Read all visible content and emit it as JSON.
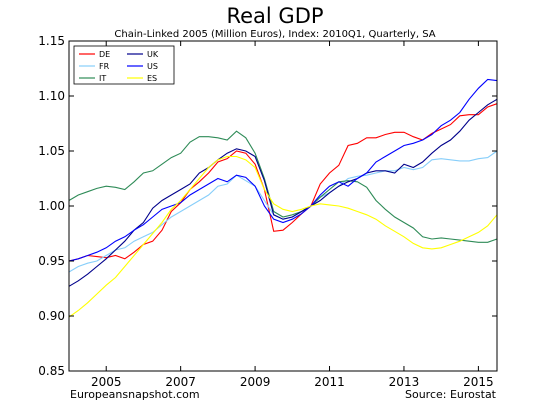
{
  "chart_data": {
    "type": "line",
    "title": "Real GDP",
    "subtitle": "Chain-Linked 2005 (Million Euros), Index: 2010Q1, Quarterly, SA",
    "source_left": "Europeansnapshot.com",
    "source_right": "Source: Eurostat",
    "xlim": [
      2004.0,
      2015.5
    ],
    "ylim": [
      0.85,
      1.15
    ],
    "x_ticks": [
      2005,
      2007,
      2009,
      2011,
      2013,
      2015
    ],
    "x_tick_labels": [
      "2005",
      "2007",
      "2009",
      "2011",
      "2013",
      "2015"
    ],
    "y_ticks": [
      0.85,
      0.9,
      0.95,
      1.0,
      1.05,
      1.1,
      1.15
    ],
    "y_tick_labels": [
      "0.85",
      "0.90",
      "0.95",
      "1.00",
      "1.05",
      "1.10",
      "1.15"
    ],
    "legend_position": "top-left",
    "legend_columns": 2,
    "grid": false,
    "x_start": 2004.0,
    "x_step": 0.25,
    "series": [
      {
        "name": "DE",
        "color": "#ff0000",
        "values": [
          0.95,
          0.952,
          0.955,
          0.954,
          0.953,
          0.955,
          0.952,
          0.958,
          0.965,
          0.968,
          0.978,
          0.995,
          1.003,
          1.015,
          1.022,
          1.03,
          1.04,
          1.043,
          1.05,
          1.048,
          1.038,
          1.015,
          0.977,
          0.978,
          0.985,
          0.993,
          1.0,
          1.02,
          1.03,
          1.037,
          1.055,
          1.057,
          1.062,
          1.062,
          1.065,
          1.067,
          1.067,
          1.063,
          1.06,
          1.066,
          1.07,
          1.074,
          1.082,
          1.083,
          1.083,
          1.09,
          1.093
        ]
      },
      {
        "name": "FR",
        "color": "#87cefa",
        "values": [
          0.94,
          0.945,
          0.948,
          0.95,
          0.955,
          0.96,
          0.962,
          0.968,
          0.972,
          0.976,
          0.983,
          0.99,
          0.995,
          1.0,
          1.005,
          1.01,
          1.018,
          1.02,
          1.028,
          1.023,
          1.018,
          1.005,
          0.992,
          0.988,
          0.99,
          0.995,
          1.0,
          1.008,
          1.012,
          1.018,
          1.025,
          1.027,
          1.028,
          1.03,
          1.032,
          1.032,
          1.035,
          1.033,
          1.035,
          1.042,
          1.043,
          1.042,
          1.041,
          1.041,
          1.043,
          1.044,
          1.05
        ]
      },
      {
        "name": "IT",
        "color": "#2e8b57",
        "values": [
          1.005,
          1.01,
          1.013,
          1.016,
          1.018,
          1.017,
          1.015,
          1.022,
          1.03,
          1.032,
          1.038,
          1.044,
          1.048,
          1.058,
          1.063,
          1.063,
          1.062,
          1.06,
          1.068,
          1.062,
          1.048,
          1.025,
          0.995,
          0.99,
          0.992,
          0.995,
          1.0,
          1.008,
          1.015,
          1.022,
          1.023,
          1.022,
          1.017,
          1.005,
          0.997,
          0.99,
          0.985,
          0.98,
          0.972,
          0.97,
          0.971,
          0.97,
          0.969,
          0.968,
          0.967,
          0.967,
          0.97
        ]
      },
      {
        "name": "UK",
        "color": "#00008b",
        "values": [
          0.927,
          0.932,
          0.938,
          0.945,
          0.952,
          0.96,
          0.968,
          0.978,
          0.985,
          0.998,
          1.005,
          1.01,
          1.015,
          1.02,
          1.03,
          1.035,
          1.042,
          1.048,
          1.052,
          1.05,
          1.045,
          1.023,
          0.992,
          0.988,
          0.99,
          0.995,
          1.0,
          1.005,
          1.012,
          1.018,
          1.022,
          1.025,
          1.03,
          1.032,
          1.032,
          1.03,
          1.038,
          1.035,
          1.04,
          1.048,
          1.055,
          1.06,
          1.068,
          1.078,
          1.085,
          1.092,
          1.097
        ]
      },
      {
        "name": "US",
        "color": "#0000ff",
        "values": [
          0.95,
          0.952,
          0.955,
          0.958,
          0.962,
          0.968,
          0.972,
          0.978,
          0.983,
          0.99,
          0.997,
          1.0,
          1.003,
          1.01,
          1.015,
          1.02,
          1.025,
          1.022,
          1.028,
          1.026,
          1.018,
          1.0,
          0.988,
          0.985,
          0.988,
          0.993,
          1.0,
          1.01,
          1.018,
          1.022,
          1.018,
          1.025,
          1.03,
          1.04,
          1.045,
          1.05,
          1.055,
          1.057,
          1.06,
          1.065,
          1.073,
          1.078,
          1.085,
          1.097,
          1.107,
          1.115,
          1.114
        ]
      },
      {
        "name": "ES",
        "color": "#ffff00",
        "values": [
          0.899,
          0.905,
          0.912,
          0.92,
          0.928,
          0.935,
          0.945,
          0.955,
          0.965,
          0.975,
          0.985,
          0.997,
          1.005,
          1.015,
          1.025,
          1.035,
          1.042,
          1.045,
          1.045,
          1.042,
          1.035,
          1.015,
          1.002,
          0.997,
          0.995,
          0.997,
          1.0,
          1.002,
          1.001,
          1.0,
          0.998,
          0.995,
          0.992,
          0.988,
          0.982,
          0.977,
          0.972,
          0.966,
          0.962,
          0.961,
          0.962,
          0.965,
          0.968,
          0.972,
          0.976,
          0.982,
          0.992
        ]
      }
    ]
  }
}
